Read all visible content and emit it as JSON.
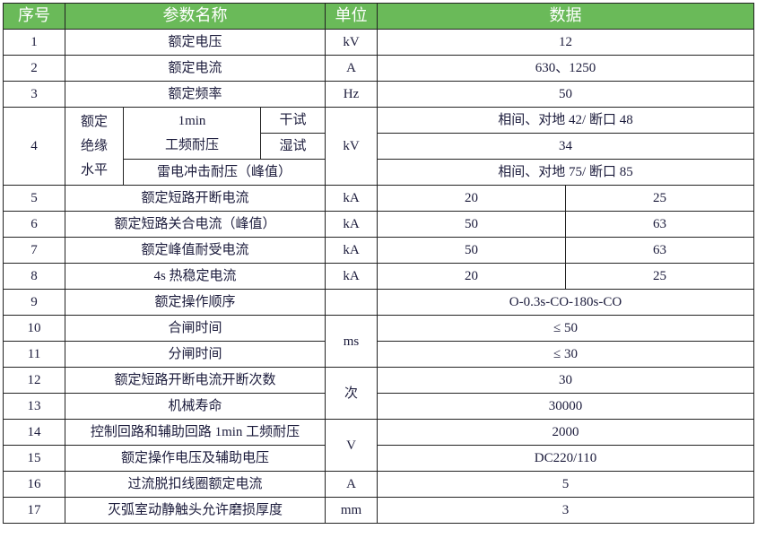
{
  "header": {
    "seq": "序号",
    "name": "参数名称",
    "unit": "单位",
    "data": "数据"
  },
  "colors": {
    "header_bg": "#6aba59",
    "header_text": "#ffffff",
    "border": "#222222",
    "text": "#1c1c3c"
  },
  "rows": [
    {
      "seq": "1",
      "name": "额定电压",
      "unit": "kV",
      "value": "12"
    },
    {
      "seq": "2",
      "name": "额定电流",
      "unit": "A",
      "value": "630、1250"
    },
    {
      "seq": "3",
      "name": "额定频率",
      "unit": "Hz",
      "value": "50"
    },
    {
      "seq": "4",
      "group": "额定绝缘水平",
      "group_lines": [
        "额定",
        "绝缘",
        "水平"
      ],
      "sub": "1min 工频耐压",
      "sub_lines": [
        "1min",
        "工频耐压"
      ],
      "dry": "干试",
      "wet": "湿试",
      "lightning": "雷电冲击耐压（峰值）",
      "unit": "kV",
      "dry_value": "相间、对地 42/ 断口 48",
      "wet_value": "34",
      "lightning_value": "相间、对地 75/ 断口 85"
    },
    {
      "seq": "5",
      "name": "额定短路开断电流",
      "unit": "kA",
      "value_a": "20",
      "value_b": "25"
    },
    {
      "seq": "6",
      "name": "额定短路关合电流（峰值）",
      "unit": "kA",
      "value_a": "50",
      "value_b": "63"
    },
    {
      "seq": "7",
      "name": "额定峰值耐受电流",
      "unit": "kA",
      "value_a": "50",
      "value_b": "63"
    },
    {
      "seq": "8",
      "name": "4s 热稳定电流",
      "unit": "kA",
      "value_a": "20",
      "value_b": "25"
    },
    {
      "seq": "9",
      "name": "额定操作顺序",
      "unit": "",
      "value": "O-0.3s-CO-180s-CO"
    },
    {
      "seq": "10",
      "name": "合闸时间",
      "unit": "ms",
      "value": "≤ 50"
    },
    {
      "seq": "11",
      "name": "分闸时间",
      "value": "≤ 30"
    },
    {
      "seq": "12",
      "name": "额定短路开断电流开断次数",
      "unit": "次",
      "value": "30"
    },
    {
      "seq": "13",
      "name": "机械寿命",
      "value": "30000"
    },
    {
      "seq": "14",
      "name": "控制回路和辅助回路 1min 工频耐压",
      "unit": "V",
      "value": "2000"
    },
    {
      "seq": "15",
      "name": "额定操作电压及辅助电压",
      "value": "DC220/110"
    },
    {
      "seq": "16",
      "name": "过流脱扣线圈额定电流",
      "unit": "A",
      "value": "5"
    },
    {
      "seq": "17",
      "name": "灭弧室动静触头允许磨损厚度",
      "unit": "mm",
      "value": "3"
    }
  ]
}
